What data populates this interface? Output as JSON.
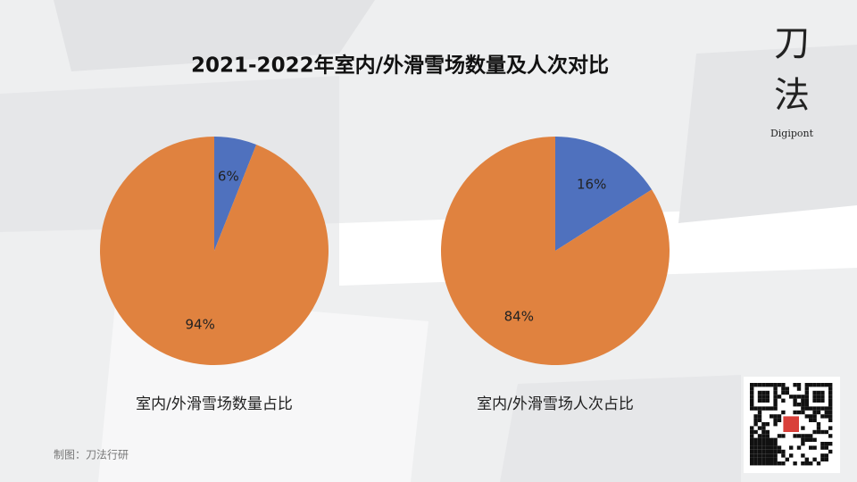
{
  "header": {
    "title": "2021-2022年室内/外滑雪场数量及人次对比"
  },
  "chart_data": [
    {
      "type": "pie",
      "title": "室内/外滑雪场数量占比",
      "values": [
        6,
        94
      ],
      "value_labels": [
        "6%",
        "94%"
      ],
      "colors": [
        "#4f71be",
        "#e0823f"
      ]
    },
    {
      "type": "pie",
      "title": "室内/外滑雪场人次占比",
      "values": [
        16,
        84
      ],
      "value_labels": [
        "16%",
        "84%"
      ],
      "colors": [
        "#4f71be",
        "#e0823f"
      ]
    }
  ],
  "logo": {
    "char1": "刀",
    "char2": "法",
    "name": "Digipont"
  },
  "footer": {
    "credit": "制图：刀法行研"
  }
}
